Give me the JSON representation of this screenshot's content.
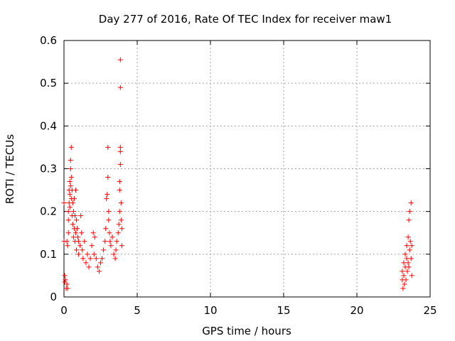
{
  "chart_data": {
    "type": "scatter",
    "title": "Day 277 of 2016, Rate Of TEC Index for receiver maw1",
    "xlabel": "GPS time / hours",
    "ylabel": "ROTI / TECUs",
    "xlim": [
      0,
      25
    ],
    "ylim": [
      0,
      0.6
    ],
    "xticks": [
      0,
      5,
      10,
      15,
      20,
      25
    ],
    "xtick_labels": [
      "0",
      "5",
      "10",
      "15",
      "20",
      "25"
    ],
    "yticks": [
      0,
      0.1,
      0.2,
      0.3,
      0.4,
      0.5,
      0.6
    ],
    "ytick_labels": [
      "0",
      "0.1",
      "0.2",
      "0.3",
      "0.4",
      "0.5",
      "0.6"
    ],
    "grid": true,
    "marker": "+",
    "color": "#ff0000",
    "series": [
      {
        "name": "ROTI",
        "points": [
          [
            0.0,
            0.22
          ],
          [
            0.0,
            0.13
          ],
          [
            0.05,
            0.05
          ],
          [
            0.05,
            0.035
          ],
          [
            0.1,
            0.04
          ],
          [
            0.15,
            0.02
          ],
          [
            0.2,
            0.03
          ],
          [
            0.2,
            0.13
          ],
          [
            0.25,
            0.02
          ],
          [
            0.25,
            0.12
          ],
          [
            0.3,
            0.15
          ],
          [
            0.3,
            0.18
          ],
          [
            0.3,
            0.2
          ],
          [
            0.35,
            0.22
          ],
          [
            0.35,
            0.25
          ],
          [
            0.4,
            0.27
          ],
          [
            0.4,
            0.24
          ],
          [
            0.4,
            0.21
          ],
          [
            0.45,
            0.3
          ],
          [
            0.45,
            0.32
          ],
          [
            0.45,
            0.26
          ],
          [
            0.5,
            0.35
          ],
          [
            0.5,
            0.28
          ],
          [
            0.5,
            0.23
          ],
          [
            0.55,
            0.25
          ],
          [
            0.55,
            0.19
          ],
          [
            0.6,
            0.22
          ],
          [
            0.6,
            0.17
          ],
          [
            0.65,
            0.2
          ],
          [
            0.65,
            0.14
          ],
          [
            0.7,
            0.23
          ],
          [
            0.7,
            0.16
          ],
          [
            0.75,
            0.19
          ],
          [
            0.75,
            0.13
          ],
          [
            0.8,
            0.25
          ],
          [
            0.8,
            0.15
          ],
          [
            0.85,
            0.18
          ],
          [
            0.85,
            0.11
          ],
          [
            0.9,
            0.16
          ],
          [
            0.95,
            0.14
          ],
          [
            1.0,
            0.13
          ],
          [
            1.0,
            0.1
          ],
          [
            1.1,
            0.12
          ],
          [
            1.15,
            0.19
          ],
          [
            1.2,
            0.15
          ],
          [
            1.25,
            0.11
          ],
          [
            1.3,
            0.09
          ],
          [
            1.4,
            0.13
          ],
          [
            1.5,
            0.08
          ],
          [
            1.6,
            0.1
          ],
          [
            1.7,
            0.07
          ],
          [
            1.8,
            0.09
          ],
          [
            1.9,
            0.12
          ],
          [
            2.0,
            0.15
          ],
          [
            2.05,
            0.1
          ],
          [
            2.1,
            0.14
          ],
          [
            2.2,
            0.09
          ],
          [
            2.3,
            0.07
          ],
          [
            2.4,
            0.06
          ],
          [
            2.5,
            0.08
          ],
          [
            2.6,
            0.09
          ],
          [
            2.7,
            0.11
          ],
          [
            2.8,
            0.13
          ],
          [
            2.85,
            0.16
          ],
          [
            2.9,
            0.23
          ],
          [
            2.95,
            0.24
          ],
          [
            3.0,
            0.35
          ],
          [
            3.0,
            0.28
          ],
          [
            3.05,
            0.2
          ],
          [
            3.05,
            0.18
          ],
          [
            3.1,
            0.15
          ],
          [
            3.15,
            0.13
          ],
          [
            3.2,
            0.12
          ],
          [
            3.3,
            0.14
          ],
          [
            3.4,
            0.1
          ],
          [
            3.5,
            0.09
          ],
          [
            3.55,
            0.11
          ],
          [
            3.6,
            0.13
          ],
          [
            3.7,
            0.15
          ],
          [
            3.75,
            0.17
          ],
          [
            3.8,
            0.2
          ],
          [
            3.8,
            0.25
          ],
          [
            3.8,
            0.27
          ],
          [
            3.85,
            0.31
          ],
          [
            3.85,
            0.34
          ],
          [
            3.85,
            0.35
          ],
          [
            3.85,
            0.49
          ],
          [
            3.85,
            0.555
          ],
          [
            3.9,
            0.22
          ],
          [
            3.9,
            0.18
          ],
          [
            3.95,
            0.16
          ],
          [
            3.95,
            0.12
          ],
          [
            23.1,
            0.04
          ],
          [
            23.1,
            0.06
          ],
          [
            23.15,
            0.02
          ],
          [
            23.2,
            0.08
          ],
          [
            23.2,
            0.05
          ],
          [
            23.25,
            0.03
          ],
          [
            23.3,
            0.07
          ],
          [
            23.3,
            0.1
          ],
          [
            23.35,
            0.04
          ],
          [
            23.4,
            0.09
          ],
          [
            23.4,
            0.12
          ],
          [
            23.45,
            0.06
          ],
          [
            23.5,
            0.08
          ],
          [
            23.5,
            0.14
          ],
          [
            23.55,
            0.18
          ],
          [
            23.55,
            0.07
          ],
          [
            23.6,
            0.2
          ],
          [
            23.6,
            0.11
          ],
          [
            23.65,
            0.13
          ],
          [
            23.7,
            0.22
          ],
          [
            23.7,
            0.09
          ],
          [
            23.75,
            0.12
          ],
          [
            23.75,
            0.05
          ]
        ]
      }
    ]
  }
}
